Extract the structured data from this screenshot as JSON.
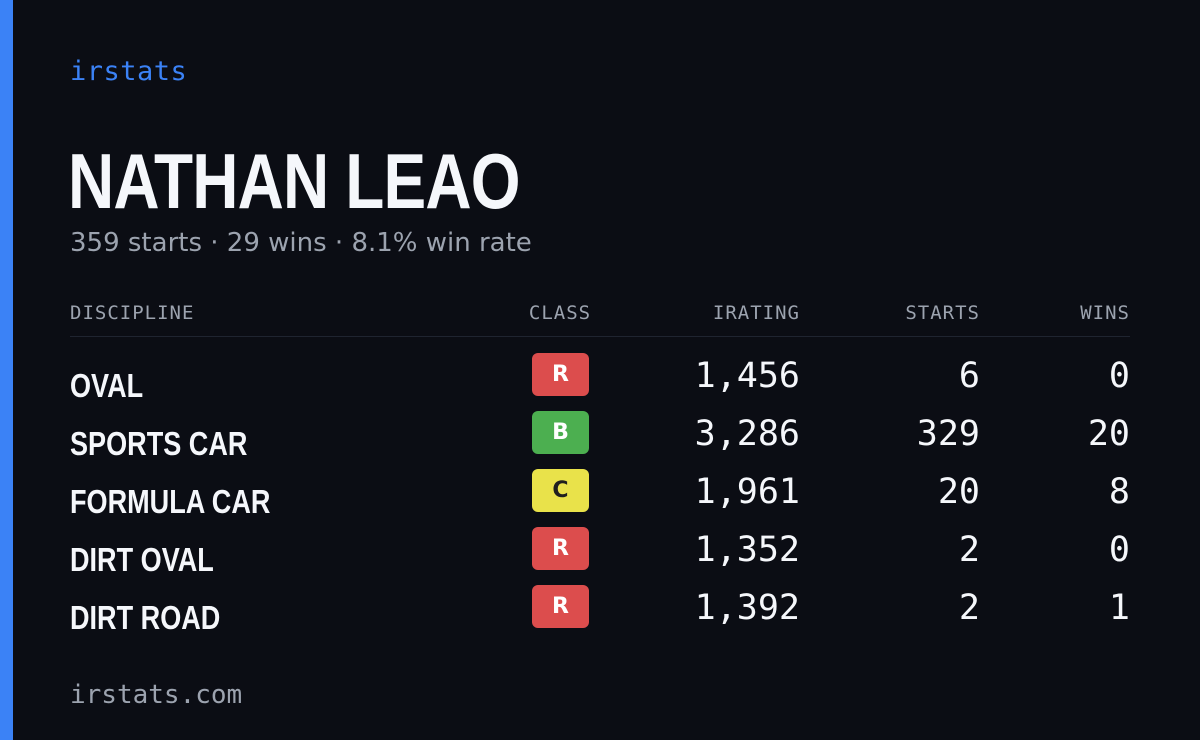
{
  "brand": "irstats",
  "player": {
    "name": "NATHAN LEAO",
    "summary": "359 starts · 29 wins · 8.1% win rate"
  },
  "colors": {
    "accent": "#3b82f6",
    "class_R": "#dc4d4d",
    "class_B": "#4caf50",
    "class_C": "#e9e24a"
  },
  "table": {
    "headers": {
      "discipline": "DISCIPLINE",
      "class": "CLASS",
      "irating": "IRATING",
      "starts": "STARTS",
      "wins": "WINS"
    },
    "rows": [
      {
        "discipline": "OVAL",
        "class": "R",
        "irating": "1,456",
        "starts": "6",
        "wins": "0"
      },
      {
        "discipline": "SPORTS CAR",
        "class": "B",
        "irating": "3,286",
        "starts": "329",
        "wins": "20"
      },
      {
        "discipline": "FORMULA CAR",
        "class": "C",
        "irating": "1,961",
        "starts": "20",
        "wins": "8"
      },
      {
        "discipline": "DIRT OVAL",
        "class": "R",
        "irating": "1,352",
        "starts": "2",
        "wins": "0"
      },
      {
        "discipline": "DIRT ROAD",
        "class": "R",
        "irating": "1,392",
        "starts": "2",
        "wins": "1"
      }
    ]
  },
  "footer": "irstats.com"
}
